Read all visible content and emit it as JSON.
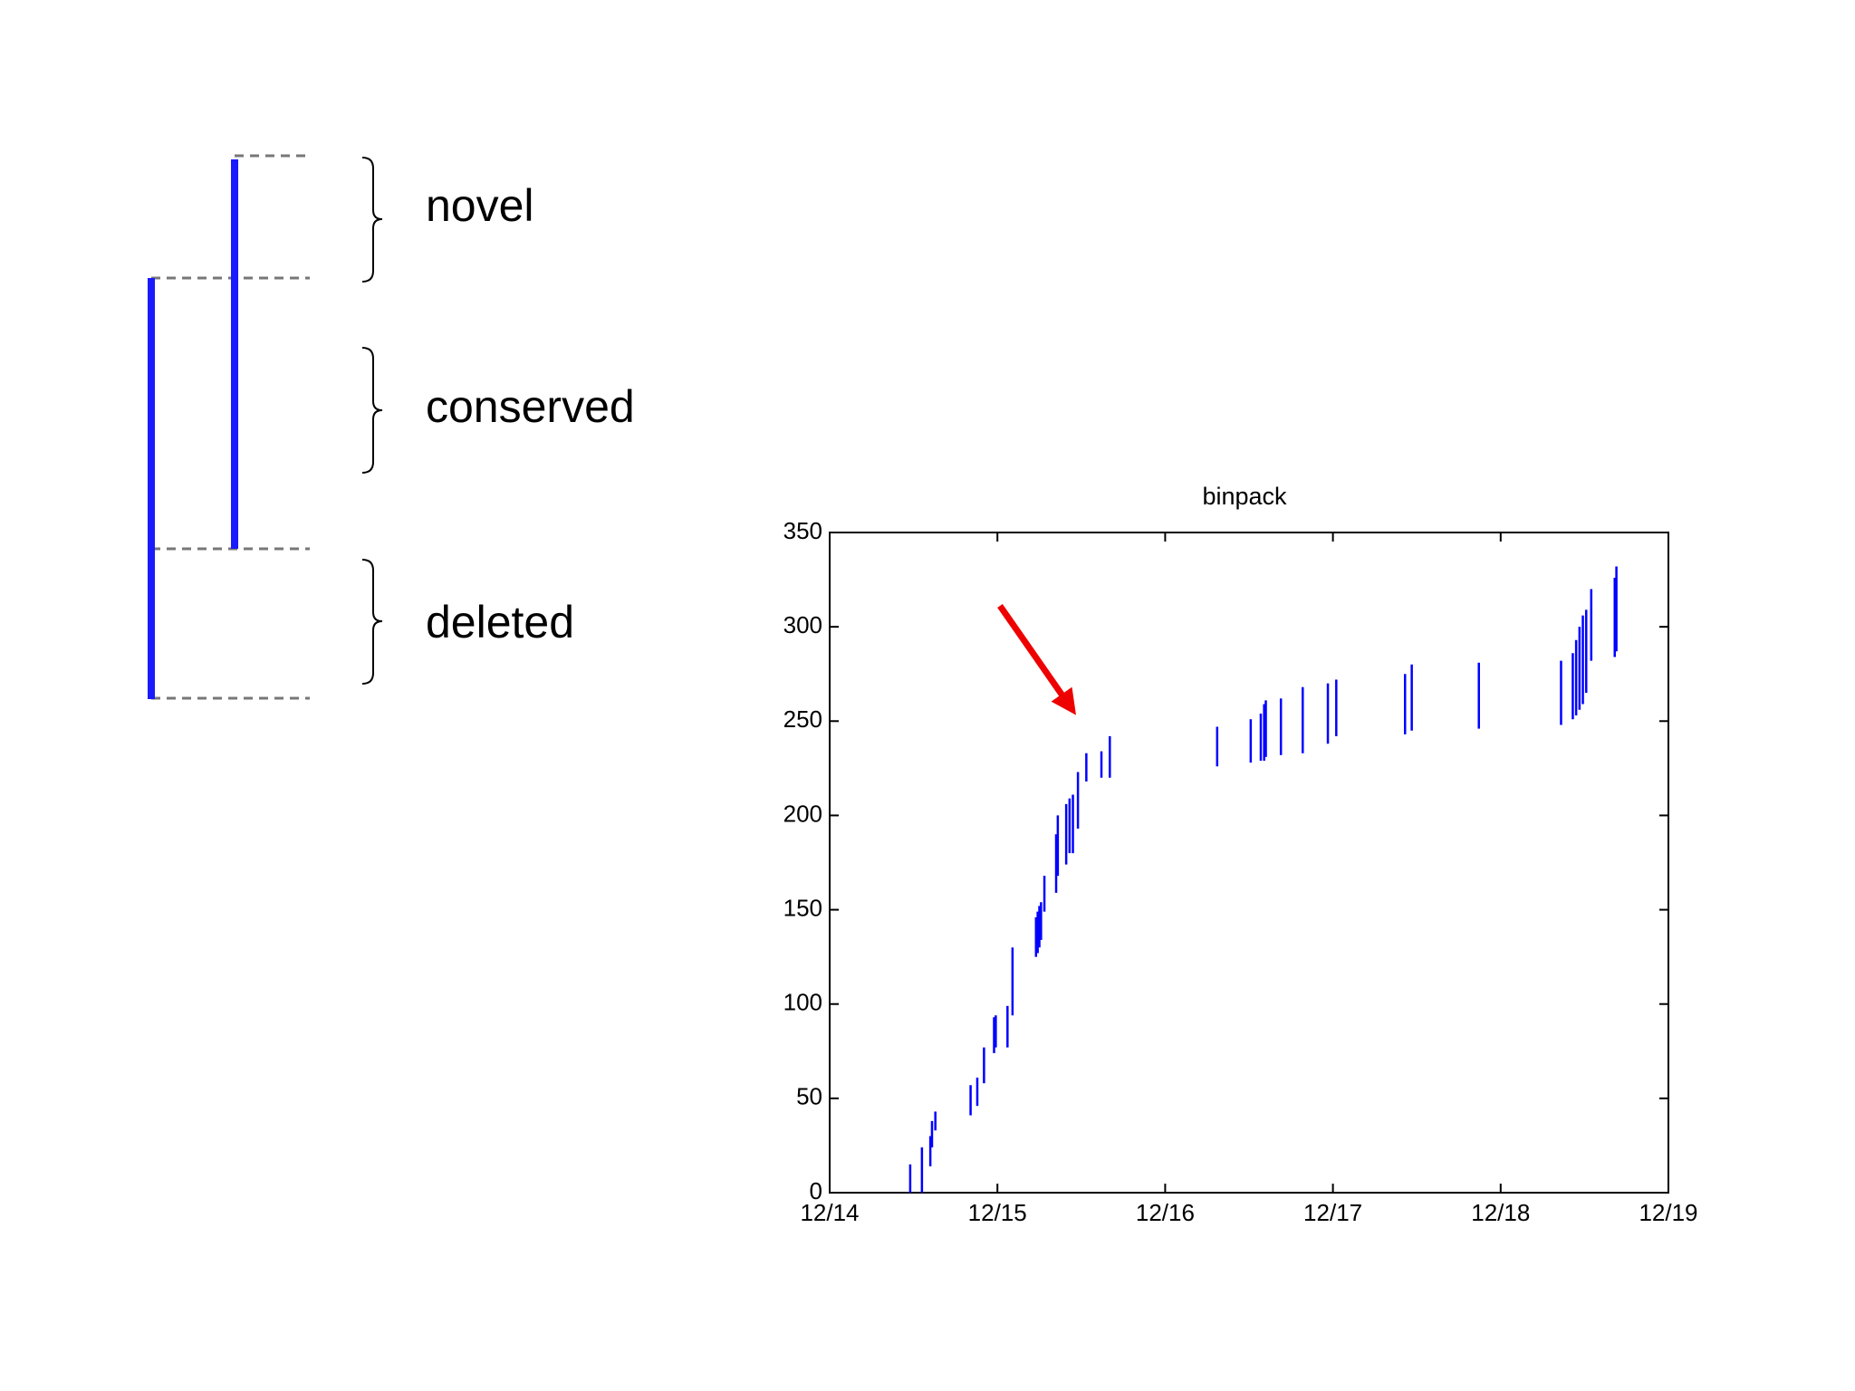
{
  "diagram": {
    "labels": [
      "novel",
      "conserved",
      "deleted"
    ]
  },
  "chart_data": {
    "type": "range",
    "title": "binpack",
    "xlim": [
      14,
      19
    ],
    "xticks": [
      {
        "value": 14,
        "label": "12/14"
      },
      {
        "value": 15,
        "label": "12/15"
      },
      {
        "value": 16,
        "label": "12/16"
      },
      {
        "value": 17,
        "label": "12/17"
      },
      {
        "value": 18,
        "label": "12/18"
      },
      {
        "value": 19,
        "label": "12/19"
      }
    ],
    "ylim": [
      0,
      350
    ],
    "yticks": [
      0,
      50,
      100,
      150,
      200,
      250,
      300,
      350
    ],
    "series": [
      {
        "color": "#0000ff",
        "x": [
          14.48,
          14.55,
          14.6,
          14.61,
          14.63,
          14.84,
          14.88,
          14.92,
          14.98,
          14.99,
          15.06,
          15.09,
          15.23,
          15.24,
          15.25,
          15.26,
          15.28,
          15.35,
          15.36,
          15.41,
          15.43,
          15.45,
          15.48,
          15.53,
          15.62,
          15.67,
          16.31,
          16.51,
          16.57,
          16.59,
          16.6,
          16.69,
          16.82,
          16.97,
          17.02,
          17.43,
          17.47,
          17.87,
          18.36,
          18.43,
          18.45,
          18.47,
          18.49,
          18.51,
          18.54,
          18.68,
          18.69
        ],
        "low": [
          0,
          0,
          14,
          24,
          33,
          41,
          46,
          58,
          74,
          77,
          77,
          94,
          125,
          127,
          130,
          134,
          149,
          159,
          168,
          174,
          180,
          180,
          193,
          218,
          220,
          220,
          226,
          228,
          229,
          229,
          231,
          232,
          233,
          238,
          242,
          243,
          245,
          246,
          248,
          251,
          253,
          256,
          259,
          265,
          282,
          284,
          287
        ],
        "high": [
          15,
          24,
          30,
          38,
          43,
          57,
          61,
          77,
          93,
          94,
          99,
          130,
          146,
          149,
          152,
          154,
          168,
          190,
          200,
          206,
          209,
          211,
          223,
          233,
          234,
          242,
          247,
          251,
          254,
          259,
          261,
          262,
          268,
          270,
          272,
          275,
          280,
          281,
          282,
          286,
          293,
          300,
          306,
          309,
          320,
          326,
          332
        ]
      }
    ]
  }
}
